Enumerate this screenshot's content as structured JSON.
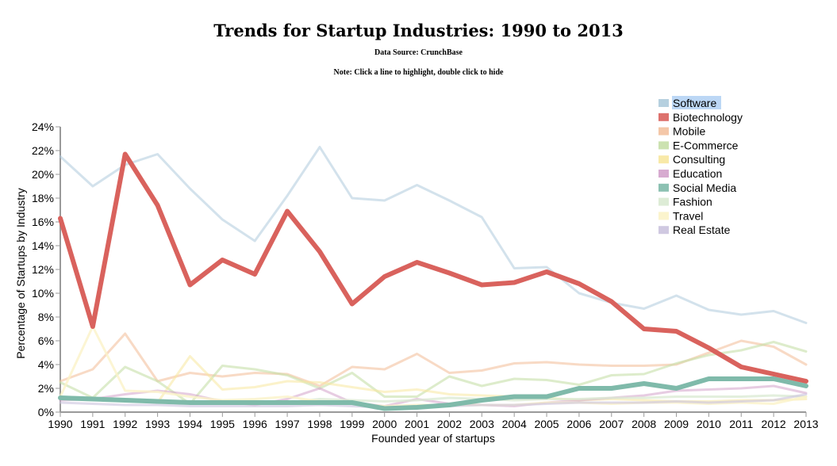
{
  "page": {
    "title": "Trends for Startup Industries: 1990 to 2013",
    "subtitle": "Data Source: CrunchBase",
    "note": "Note: Click a line to highlight, double click to hide"
  },
  "chart_data": {
    "type": "line",
    "title": "Trends for Startup Industries: 1990 to 2013",
    "xlabel": "Founded year of startups",
    "ylabel": "Percentage of Startups by Industry",
    "x": [
      1990,
      1991,
      1992,
      1993,
      1994,
      1995,
      1996,
      1997,
      1998,
      1999,
      2000,
      2001,
      2002,
      2003,
      2004,
      2005,
      2006,
      2007,
      2008,
      2009,
      2010,
      2011,
      2012,
      2013
    ],
    "ylim": [
      0,
      24
    ],
    "yticks": [
      0,
      2,
      4,
      6,
      8,
      10,
      12,
      14,
      16,
      18,
      20,
      22,
      24
    ],
    "ytick_labels": [
      "0%",
      "2%",
      "4%",
      "6%",
      "8%",
      "10%",
      "12%",
      "14%",
      "16%",
      "18%",
      "20%",
      "22%",
      "24%"
    ],
    "legend_position": "top-right",
    "highlighted_legend": "Software",
    "series": [
      {
        "name": "Software",
        "color": "#aecbdc",
        "opacity": 0.55,
        "highlighted": false,
        "values": [
          21.5,
          19.0,
          20.8,
          21.7,
          18.8,
          16.2,
          14.4,
          18.2,
          22.3,
          18.0,
          17.8,
          19.1,
          17.8,
          16.4,
          12.1,
          12.2,
          10.0,
          9.2,
          8.7,
          9.8,
          8.6,
          8.2,
          8.5,
          7.5
        ]
      },
      {
        "name": "Biotechnology",
        "color": "#d9625d",
        "opacity": 1.0,
        "highlighted": true,
        "values": [
          16.3,
          7.2,
          21.7,
          17.4,
          10.7,
          12.8,
          11.6,
          16.9,
          13.5,
          9.1,
          11.4,
          12.6,
          11.7,
          10.7,
          10.9,
          11.8,
          10.8,
          9.3,
          7.0,
          6.8,
          5.4,
          3.8,
          3.2,
          2.6
        ]
      },
      {
        "name": "Mobile",
        "color": "#f3c19e",
        "opacity": 0.6,
        "highlighted": false,
        "values": [
          2.6,
          3.6,
          6.6,
          2.6,
          3.3,
          3.0,
          3.3,
          3.2,
          2.2,
          3.8,
          3.6,
          4.9,
          3.3,
          3.5,
          4.1,
          4.2,
          4.0,
          3.9,
          3.9,
          4.0,
          5.0,
          6.0,
          5.5,
          4.0
        ]
      },
      {
        "name": "E-Commerce",
        "color": "#c6dfa9",
        "opacity": 0.6,
        "highlighted": false,
        "values": [
          2.5,
          1.2,
          3.8,
          2.6,
          0.7,
          3.9,
          3.6,
          3.1,
          2.0,
          3.3,
          1.3,
          1.3,
          3.0,
          2.2,
          2.8,
          2.7,
          2.3,
          3.1,
          3.2,
          4.1,
          4.8,
          5.2,
          5.9,
          5.1
        ]
      },
      {
        "name": "Consulting",
        "color": "#f7e79e",
        "opacity": 0.55,
        "highlighted": false,
        "values": [
          1.2,
          1.1,
          1.0,
          0.8,
          4.7,
          1.9,
          2.1,
          2.6,
          2.5,
          2.1,
          1.7,
          1.9,
          1.5,
          1.4,
          1.3,
          1.2,
          1.0,
          1.1,
          1.0,
          0.9,
          0.9,
          1.0,
          1.0,
          1.1
        ]
      },
      {
        "name": "Education",
        "color": "#d3a2cb",
        "opacity": 0.55,
        "highlighted": false,
        "values": [
          1.0,
          1.1,
          1.5,
          1.8,
          1.5,
          0.9,
          0.6,
          1.1,
          2.0,
          0.8,
          0.5,
          1.1,
          0.7,
          0.6,
          0.5,
          0.8,
          1.0,
          1.2,
          1.4,
          1.8,
          1.9,
          2.0,
          2.2,
          1.6
        ]
      },
      {
        "name": "Social Media",
        "color": "#7fbaaa",
        "opacity": 1.0,
        "highlighted": true,
        "values": [
          1.2,
          1.1,
          1.0,
          0.9,
          0.8,
          0.8,
          0.8,
          0.8,
          0.8,
          0.8,
          0.3,
          0.4,
          0.6,
          1.0,
          1.3,
          1.3,
          2.0,
          2.0,
          2.4,
          2.0,
          2.8,
          2.8,
          2.8,
          2.2
        ]
      },
      {
        "name": "Fashion",
        "color": "#d9ead1",
        "opacity": 0.75,
        "highlighted": false,
        "values": [
          1.3,
          1.2,
          1.1,
          1.0,
          0.9,
          0.7,
          0.8,
          0.8,
          1.1,
          1.0,
          0.9,
          1.0,
          1.2,
          1.1,
          1.0,
          1.1,
          1.1,
          1.2,
          1.2,
          1.3,
          1.3,
          1.3,
          1.4,
          1.3
        ]
      },
      {
        "name": "Travel",
        "color": "#fbf3c8",
        "opacity": 0.8,
        "highlighted": false,
        "values": [
          1.3,
          7.2,
          1.8,
          1.7,
          1.3,
          1.0,
          1.1,
          1.3,
          0.9,
          0.7,
          0.5,
          0.6,
          0.6,
          0.6,
          0.6,
          0.8,
          0.8,
          0.7,
          0.8,
          0.8,
          0.7,
          0.8,
          0.7,
          1.3
        ]
      },
      {
        "name": "Real Estate",
        "color": "#cbc3de",
        "opacity": 0.6,
        "highlighted": false,
        "values": [
          0.8,
          0.7,
          0.6,
          0.6,
          0.5,
          0.5,
          0.5,
          0.5,
          0.6,
          0.5,
          0.4,
          0.5,
          0.5,
          0.6,
          0.6,
          0.7,
          0.8,
          0.8,
          0.8,
          0.9,
          0.8,
          0.9,
          1.0,
          1.5
        ]
      }
    ]
  }
}
